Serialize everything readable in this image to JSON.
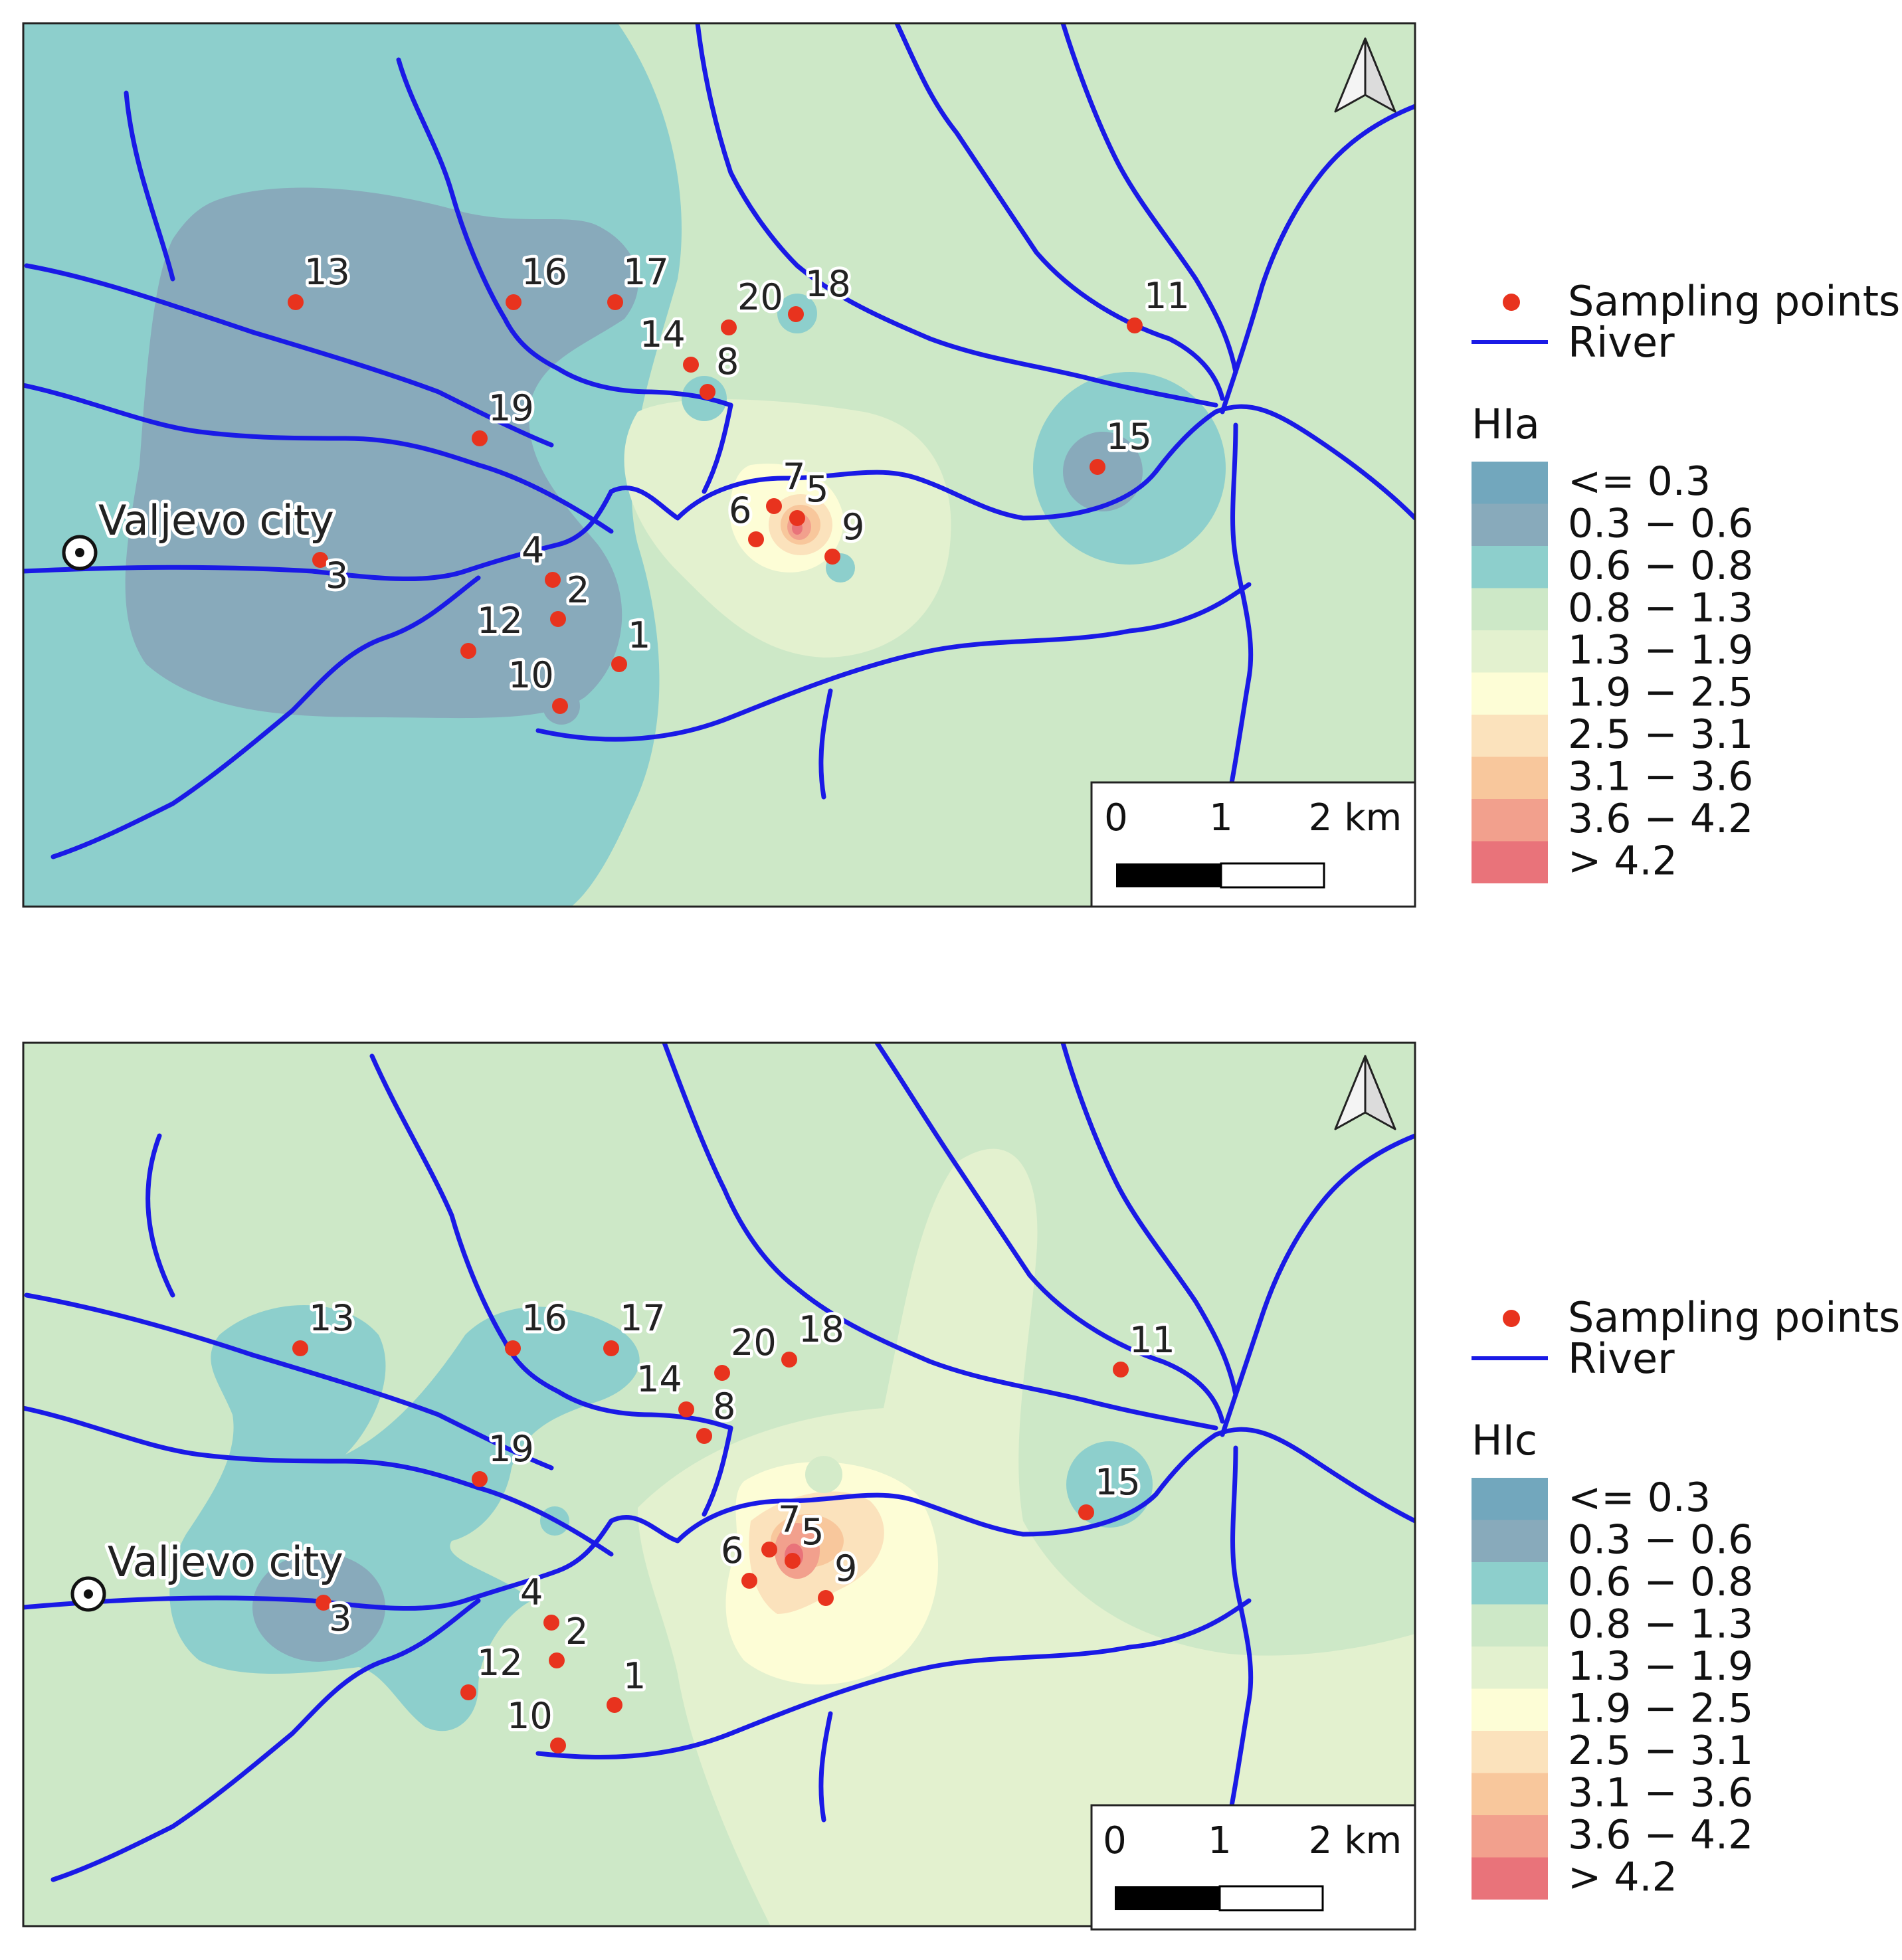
{
  "legend": {
    "sampling_points": "Sampling points",
    "river": "River",
    "classes": [
      "<= 0.3",
      "0.3 − 0.6",
      "0.6 − 0.8",
      "0.8 − 1.3",
      "1.3 − 1.9",
      "1.9 − 2.5",
      "2.5 − 3.1",
      "3.1 − 3.6",
      "3.6 − 4.2",
      "> 4.2"
    ],
    "class_colors": [
      "#72a7bd",
      "#88aabb",
      "#8dcfcc",
      "#cde8c7",
      "#e3f1cf",
      "#fdfdd6",
      "#fbe2bc",
      "#f8c79c",
      "#f2a08d",
      "#e9737a"
    ]
  },
  "colors": {
    "river": "#1a1ae6",
    "point": "#e8331e",
    "frame": "#222222"
  },
  "scalebar": {
    "tick_0": "0",
    "tick_1": "1",
    "tick_2": "2 km"
  },
  "city": {
    "label": "Valjevo city",
    "icon": "city-point-icon"
  },
  "north_arrow_icon": "north-arrow-icon",
  "maps": [
    {
      "index_title": "HIa",
      "points": [
        "13",
        "16",
        "17",
        "20",
        "18",
        "11",
        "14",
        "8",
        "19",
        "15",
        "7",
        "5",
        "6",
        "9",
        "3",
        "4",
        "2",
        "12",
        "1",
        "10"
      ]
    },
    {
      "index_title": "HIc",
      "points": [
        "13",
        "16",
        "17",
        "20",
        "18",
        "11",
        "14",
        "8",
        "19",
        "15",
        "7",
        "5",
        "6",
        "9",
        "3",
        "4",
        "2",
        "12",
        "1",
        "10"
      ]
    }
  ]
}
